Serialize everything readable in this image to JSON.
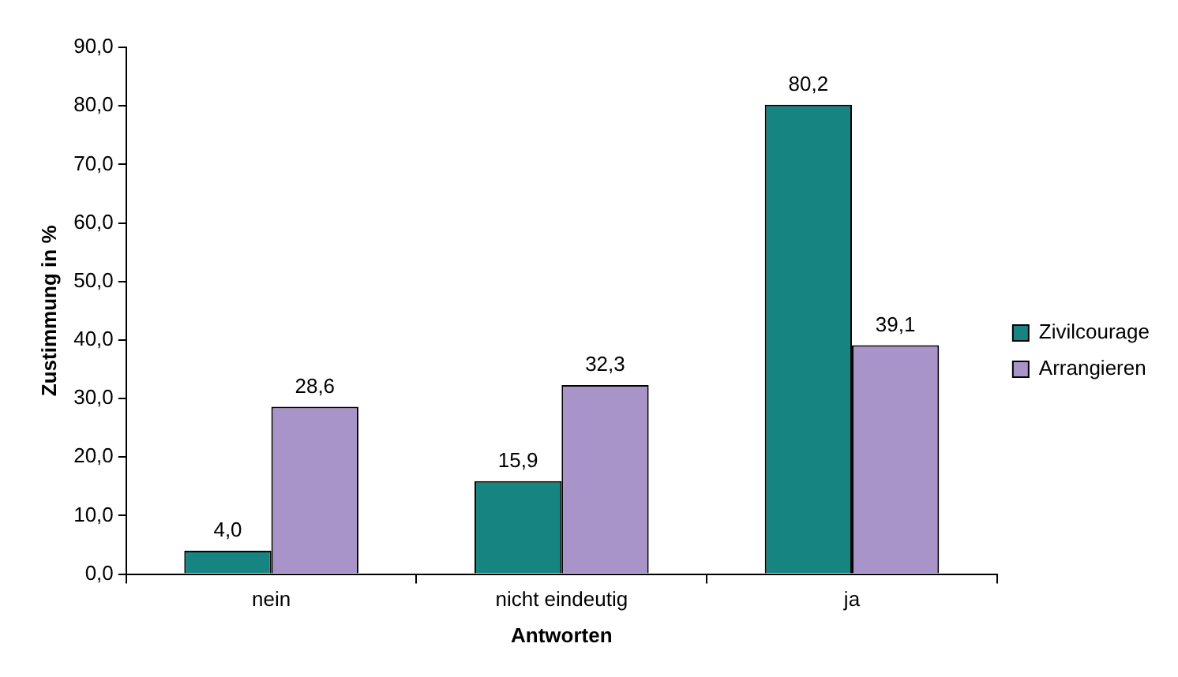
{
  "chart_data": {
    "type": "bar",
    "xlabel": "Antworten",
    "ylabel": "Zustimmung in %",
    "categories": [
      "nein",
      "nicht eindeutig",
      "ja"
    ],
    "series": [
      {
        "name": "Zivilcourage",
        "color": "#168480",
        "values": [
          4.0,
          15.9,
          80.2
        ],
        "value_labels": [
          "4,0",
          "15,9",
          "80,2"
        ]
      },
      {
        "name": "Arrangieren",
        "color": "#a894c8",
        "values": [
          28.6,
          32.3,
          39.1
        ],
        "value_labels": [
          "28,6",
          "32,3",
          "39,1"
        ]
      }
    ],
    "ylim": [
      0,
      90
    ],
    "yticks": [
      {
        "value": 0,
        "label": "0,0"
      },
      {
        "value": 10,
        "label": "10,0"
      },
      {
        "value": 20,
        "label": "20,0"
      },
      {
        "value": 30,
        "label": "30,0"
      },
      {
        "value": 40,
        "label": "40,0"
      },
      {
        "value": 50,
        "label": "50,0"
      },
      {
        "value": 60,
        "label": "60,0"
      },
      {
        "value": 70,
        "label": "70,0"
      },
      {
        "value": 80,
        "label": "80,0"
      },
      {
        "value": 90,
        "label": "90,0"
      }
    ],
    "grid": false,
    "legend": "right"
  }
}
